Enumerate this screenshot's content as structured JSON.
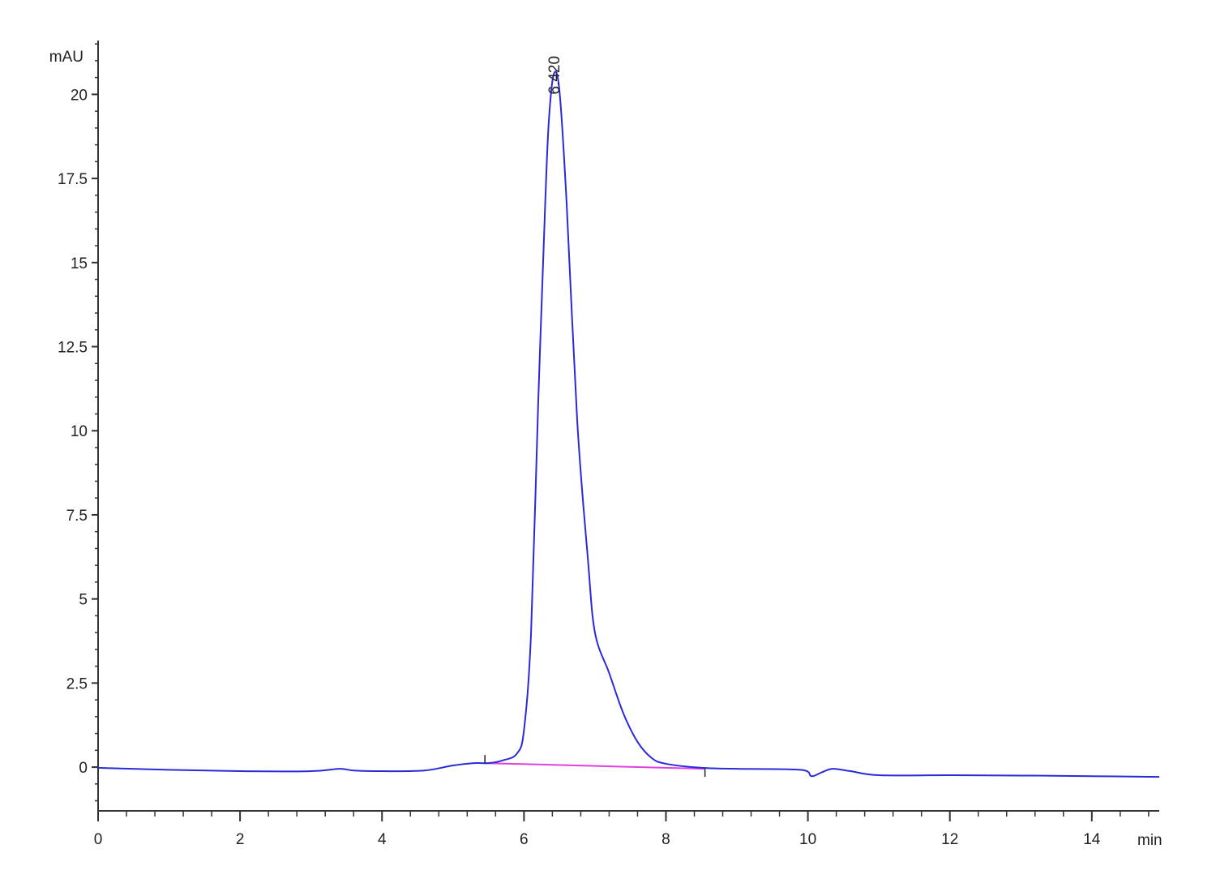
{
  "chart_data": {
    "type": "line",
    "title": "",
    "xlabel": "min",
    "ylabel": "mAU",
    "xlim": [
      0,
      14.95
    ],
    "ylim": [
      -1.3,
      21.6
    ],
    "x_ticks": [
      0,
      2,
      4,
      6,
      8,
      10,
      12,
      14
    ],
    "x_tick_labels": [
      "0",
      "2",
      "4",
      "6",
      "8",
      "10",
      "12",
      "14"
    ],
    "x_minor_step": 0.4,
    "y_ticks": [
      0,
      2.5,
      5,
      7.5,
      10,
      12.5,
      15,
      17.5,
      20
    ],
    "y_tick_labels": [
      "0",
      "2.5",
      "5",
      "7.5",
      "10",
      "12.5",
      "15",
      "17.5",
      "20"
    ],
    "y_minor_step": 0.5,
    "grid": false,
    "colors": {
      "trace": "#2a2ad8",
      "baseline": "#e040e0",
      "axis": "#333333"
    },
    "series": [
      {
        "x": [
          0,
          1,
          2,
          3,
          3.4,
          3.6,
          4,
          4.6,
          5,
          5.3,
          5.5,
          5.7,
          5.9,
          6.0,
          6.1,
          6.2,
          6.3,
          6.35,
          6.42,
          6.5,
          6.6,
          6.75,
          6.9,
          7.0,
          7.2,
          7.4,
          7.6,
          7.8,
          8.0,
          8.5,
          9.0,
          9.9,
          10.05,
          10.2,
          10.35,
          10.6,
          11.0,
          12,
          13,
          14,
          14.95
        ],
        "y": [
          -0.02,
          -0.08,
          -0.12,
          -0.12,
          -0.05,
          -0.1,
          -0.12,
          -0.1,
          0.05,
          0.12,
          0.12,
          0.2,
          0.4,
          1.1,
          4.0,
          10.8,
          16.8,
          19.2,
          20.6,
          20.1,
          16.8,
          10.3,
          6.2,
          4.0,
          2.8,
          1.6,
          0.75,
          0.27,
          0.1,
          -0.02,
          -0.05,
          -0.08,
          -0.27,
          -0.15,
          -0.05,
          -0.12,
          -0.24,
          -0.24,
          -0.25,
          -0.27,
          -0.29
        ]
      }
    ],
    "integration_baseline": {
      "x": [
        5.45,
        8.55
      ],
      "y": [
        0.12,
        -0.05
      ]
    },
    "annotations": [
      {
        "text": "6.420",
        "x": 6.42,
        "y": 20.6
      }
    ]
  }
}
